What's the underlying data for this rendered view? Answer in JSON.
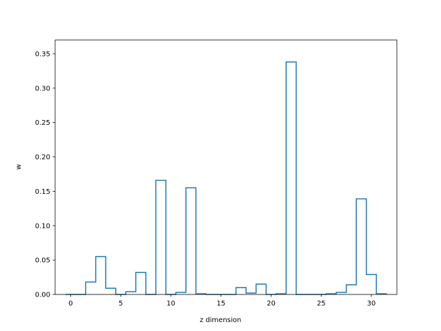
{
  "chart_data": {
    "type": "step-histogram",
    "title": "",
    "xlabel": "z dimension",
    "ylabel": "w",
    "xlim": [
      -1.55,
      32.55
    ],
    "ylim": [
      0,
      0.37
    ],
    "xticks": [
      0,
      5,
      10,
      15,
      20,
      25,
      30
    ],
    "xtick_labels": [
      "0",
      "5",
      "10",
      "15",
      "20",
      "25",
      "30"
    ],
    "yticks": [
      0.0,
      0.05,
      0.1,
      0.15,
      0.2,
      0.25,
      0.3,
      0.35
    ],
    "ytick_labels": [
      "0.00",
      "0.05",
      "0.10",
      "0.15",
      "0.20",
      "0.25",
      "0.30",
      "0.35"
    ],
    "grid": false,
    "legend": "none",
    "colors": {
      "series": "#1f77b4",
      "axes": "#000000",
      "background": "#ffffff"
    },
    "series": [
      {
        "x": [
          0,
          1,
          2,
          3,
          4,
          5,
          6,
          7,
          8,
          9,
          10,
          11,
          12,
          13,
          14,
          15,
          16,
          17,
          18,
          19,
          20,
          21,
          22,
          23,
          24,
          25,
          26,
          27,
          28,
          29,
          30,
          31
        ],
        "values": [
          0.0,
          0.0,
          0.018,
          0.055,
          0.009,
          0.0,
          0.004,
          0.032,
          0.0,
          0.166,
          0.0,
          0.003,
          0.155,
          0.001,
          0.0,
          0.0,
          0.0,
          0.01,
          0.002,
          0.015,
          0.0,
          0.001,
          0.338,
          0.0,
          0.0,
          0.0,
          0.001,
          0.003,
          0.014,
          0.139,
          0.029,
          0.001
        ]
      }
    ]
  }
}
